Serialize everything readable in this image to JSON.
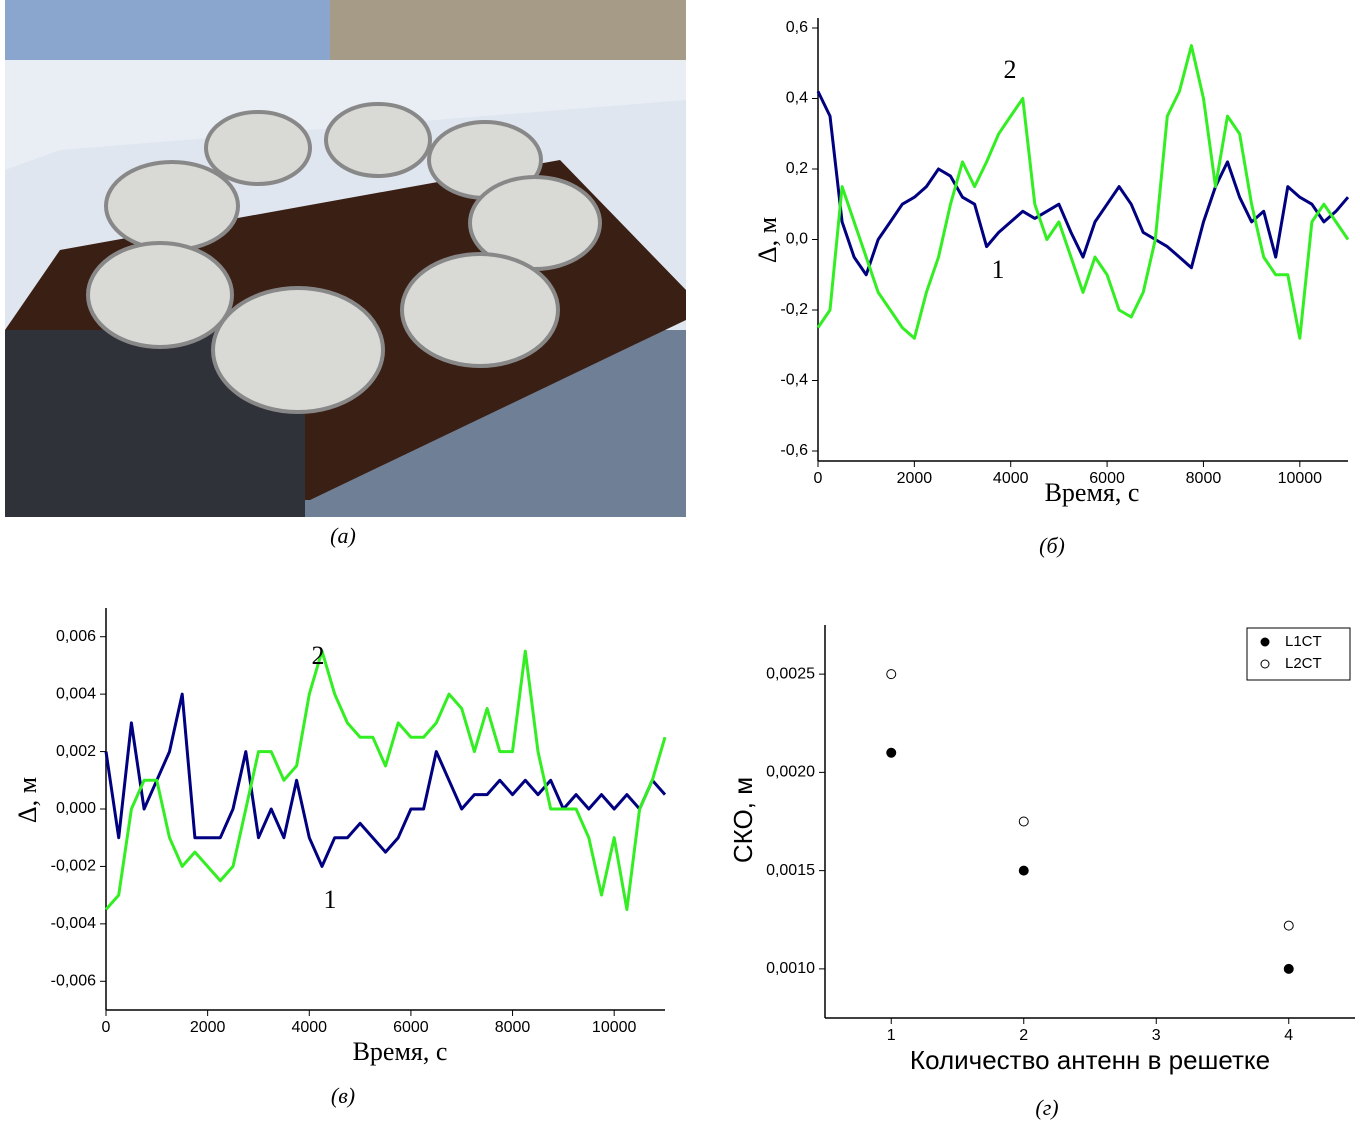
{
  "photo": {
    "caption": "(а)"
  },
  "chart_data": [
    {
      "type": "line",
      "caption": "(б)",
      "xlabel": "Время, с",
      "ylabel": "Δ, м",
      "x": [
        0,
        250,
        500,
        750,
        1000,
        1250,
        1500,
        1750,
        2000,
        2250,
        2500,
        2750,
        3000,
        3250,
        3500,
        3750,
        4000,
        4250,
        4500,
        4750,
        5000,
        5250,
        5500,
        5750,
        6000,
        6250,
        6500,
        6750,
        7000,
        7250,
        7500,
        7750,
        8000,
        8250,
        8500,
        8750,
        9000,
        9250,
        9500,
        9750,
        10000,
        10250,
        10500,
        10750,
        11000
      ],
      "series": [
        {
          "name": "1",
          "color": "#000080",
          "values": [
            0.42,
            0.35,
            0.05,
            -0.05,
            -0.1,
            0.0,
            0.05,
            0.1,
            0.12,
            0.15,
            0.2,
            0.18,
            0.12,
            0.1,
            -0.02,
            0.02,
            0.05,
            0.08,
            0.06,
            0.08,
            0.1,
            0.02,
            -0.05,
            0.05,
            0.1,
            0.15,
            0.1,
            0.02,
            0.0,
            -0.02,
            -0.05,
            -0.08,
            0.05,
            0.15,
            0.22,
            0.12,
            0.05,
            0.08,
            -0.05,
            0.15,
            0.12,
            0.1,
            0.05,
            0.08,
            0.12
          ]
        },
        {
          "name": "2",
          "color": "#33ee22",
          "values": [
            -0.25,
            -0.2,
            0.15,
            0.05,
            -0.05,
            -0.15,
            -0.2,
            -0.25,
            -0.28,
            -0.15,
            -0.05,
            0.1,
            0.22,
            0.15,
            0.22,
            0.3,
            0.35,
            0.4,
            0.1,
            0.0,
            0.05,
            -0.05,
            -0.15,
            -0.05,
            -0.1,
            -0.2,
            -0.22,
            -0.15,
            0.0,
            0.35,
            0.42,
            0.55,
            0.4,
            0.15,
            0.35,
            0.3,
            0.1,
            -0.05,
            -0.1,
            -0.1,
            -0.28,
            0.05,
            0.1,
            0.05,
            0.0
          ]
        }
      ],
      "xlim": [
        0,
        11000
      ],
      "xticks": [
        0,
        2000,
        4000,
        6000,
        8000,
        10000
      ],
      "ylim": [
        -0.6,
        0.6
      ],
      "yticks": [
        {
          "value": -0.6,
          "label": "-0,6"
        },
        {
          "value": -0.4,
          "label": "-0,4"
        },
        {
          "value": -0.2,
          "label": "-0,2"
        },
        {
          "value": 0,
          "label": "0,0"
        },
        {
          "value": 0.2,
          "label": "0,2"
        },
        {
          "value": 0.4,
          "label": "0,4"
        },
        {
          "value": 0.6,
          "label": "0,6"
        }
      ]
    },
    {
      "type": "line",
      "caption": "(в)",
      "xlabel": "Время, с",
      "ylabel": "Δ, м",
      "x": [
        0,
        250,
        500,
        750,
        1000,
        1250,
        1500,
        1750,
        2000,
        2250,
        2500,
        2750,
        3000,
        3250,
        3500,
        3750,
        4000,
        4250,
        4500,
        4750,
        5000,
        5250,
        5500,
        5750,
        6000,
        6250,
        6500,
        6750,
        7000,
        7250,
        7500,
        7750,
        8000,
        8250,
        8500,
        8750,
        9000,
        9250,
        9500,
        9750,
        10000,
        10250,
        10500,
        10750,
        11000
      ],
      "series": [
        {
          "name": "1",
          "color": "#000080",
          "values": [
            0.002,
            -0.001,
            0.003,
            0.0,
            0.001,
            0.002,
            0.004,
            -0.001,
            -0.001,
            -0.001,
            0.0,
            0.002,
            -0.001,
            0.0,
            -0.001,
            0.001,
            -0.001,
            -0.002,
            -0.001,
            -0.001,
            -0.0005,
            -0.001,
            -0.0015,
            -0.001,
            0.0,
            0.0,
            0.002,
            0.001,
            0.0,
            0.0005,
            0.0005,
            0.001,
            0.0005,
            0.001,
            0.0005,
            0.001,
            0.0,
            0.0005,
            0.0,
            0.0005,
            0.0,
            0.0005,
            0.0,
            0.001,
            0.0005
          ]
        },
        {
          "name": "2",
          "color": "#33ee22",
          "values": [
            -0.0035,
            -0.003,
            0.0,
            0.001,
            0.001,
            -0.001,
            -0.002,
            -0.0015,
            -0.002,
            -0.0025,
            -0.002,
            0.0,
            0.002,
            0.002,
            0.001,
            0.0015,
            0.004,
            0.0055,
            0.004,
            0.003,
            0.0025,
            0.0025,
            0.0015,
            0.003,
            0.0025,
            0.0025,
            0.003,
            0.004,
            0.0035,
            0.002,
            0.0035,
            0.002,
            0.002,
            0.0055,
            0.002,
            0.0,
            0.0,
            0.0,
            -0.001,
            -0.003,
            -0.001,
            -0.0035,
            0.0,
            0.001,
            0.0025
          ]
        }
      ],
      "xlim": [
        0,
        11000
      ],
      "xticks": [
        0,
        2000,
        4000,
        6000,
        8000,
        10000
      ],
      "ylim": [
        -0.007,
        0.007
      ],
      "yticks": [
        {
          "value": -0.006,
          "label": "-0,006"
        },
        {
          "value": -0.004,
          "label": "-0,004"
        },
        {
          "value": -0.002,
          "label": "-0,002"
        },
        {
          "value": 0,
          "label": "0,000"
        },
        {
          "value": 0.002,
          "label": "0,002"
        },
        {
          "value": 0.004,
          "label": "0,004"
        },
        {
          "value": 0.006,
          "label": "0,006"
        }
      ]
    },
    {
      "type": "scatter",
      "caption": "(г)",
      "xlabel": "Количество антенн в решетке",
      "ylabel": "СКО, м",
      "x": [
        1,
        2,
        4
      ],
      "series": [
        {
          "name": "L1CT",
          "color": "#000000",
          "filled": true,
          "values": [
            0.0021,
            0.0015,
            0.001
          ]
        },
        {
          "name": "L2CT",
          "color": "#000000",
          "filled": false,
          "values": [
            0.0025,
            0.00175,
            0.00122
          ]
        }
      ],
      "xlim": [
        0.5,
        4.5
      ],
      "xticks": [
        1,
        2,
        3,
        4
      ],
      "ylim": [
        0.00075,
        0.00275
      ],
      "yticks": [
        {
          "value": 0.001,
          "label": "0,0010"
        },
        {
          "value": 0.0015,
          "label": "0,0015"
        },
        {
          "value": 0.002,
          "label": "0,0020"
        },
        {
          "value": 0.0025,
          "label": "0,0025"
        }
      ],
      "legend": "top-right"
    }
  ]
}
